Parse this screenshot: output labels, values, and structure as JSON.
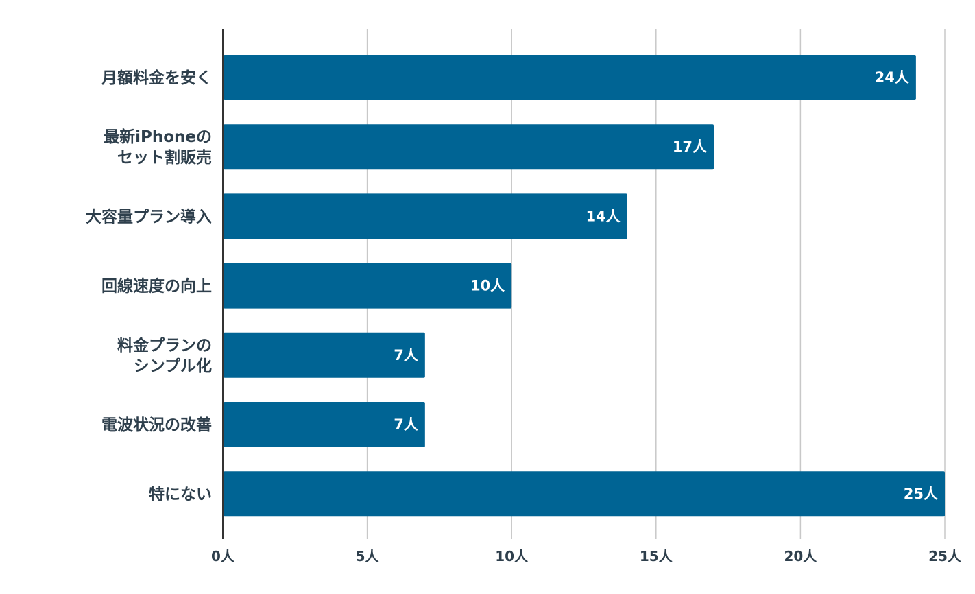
{
  "chart_data": {
    "type": "bar",
    "orientation": "horizontal",
    "categories": [
      [
        "月額料金を安く"
      ],
      [
        "最新iPhoneの",
        "セット割販売"
      ],
      [
        "大容量プラン導入"
      ],
      [
        "回線速度の向上"
      ],
      [
        "料金プランの",
        "シンプル化"
      ],
      [
        "電波状況の改善"
      ],
      [
        "特にない"
      ]
    ],
    "values": [
      24,
      17,
      14,
      10,
      7,
      7,
      25
    ],
    "value_labels": [
      "24人",
      "17人",
      "14人",
      "10人",
      "7人",
      "7人",
      "25人"
    ],
    "xticks": [
      0,
      5,
      10,
      15,
      20,
      25
    ],
    "xtick_labels": [
      "0人",
      "5人",
      "10人",
      "15人",
      "20人",
      "25人"
    ],
    "xlim": [
      0,
      25
    ],
    "grid": true,
    "bar_color": "#006494",
    "grid_color": "#c8c8c8",
    "axis_color": "#333333",
    "label_color": "#2e3f4c"
  }
}
